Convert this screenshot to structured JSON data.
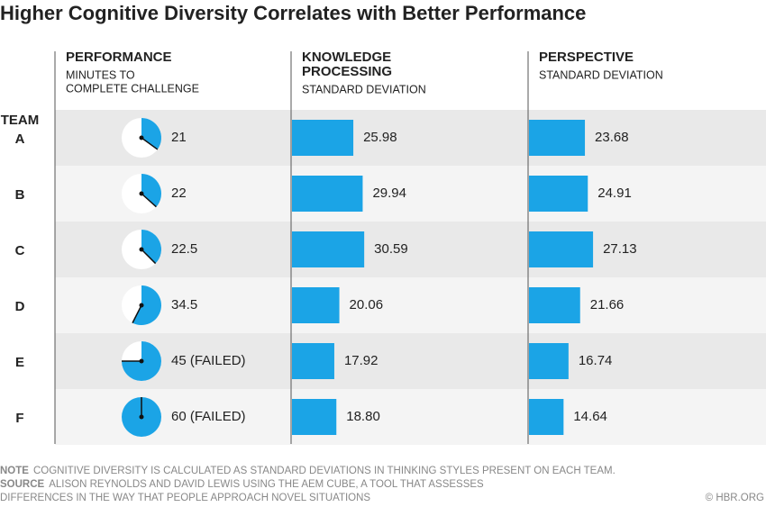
{
  "chart_data": {
    "type": "table-chart",
    "title": "Higher Cognitive Diversity Correlates with Better Performance",
    "row_header": "TEAM",
    "teams": [
      "A",
      "B",
      "C",
      "D",
      "E",
      "F"
    ],
    "columns": [
      {
        "type": "clock",
        "title_lines": [
          "PERFORMANCE"
        ],
        "subtitle_lines": [
          "MINUTES TO",
          "COMPLETE CHALLENGE"
        ],
        "values": [
          21,
          22,
          22.5,
          34.5,
          45,
          60
        ],
        "value_labels": [
          "21",
          "22",
          "22.5",
          "34.5",
          "45 (FAILED)",
          "60 (FAILED)"
        ],
        "color": "#1ba4e6"
      },
      {
        "type": "bar",
        "title_lines": [
          "KNOWLEDGE",
          "PROCESSING"
        ],
        "subtitle_lines": [
          "STANDARD DEVIATION"
        ],
        "values": [
          25.98,
          29.94,
          30.59,
          20.06,
          17.92,
          18.8
        ],
        "value_labels": [
          "25.98",
          "29.94",
          "30.59",
          "20.06",
          "17.92",
          "18.80"
        ],
        "color": "#1ba4e6"
      },
      {
        "type": "bar",
        "title_lines": [
          "PERSPECTIVE"
        ],
        "subtitle_lines": [
          "STANDARD DEVIATION"
        ],
        "values": [
          23.68,
          24.91,
          27.13,
          21.66,
          16.74,
          14.64
        ],
        "value_labels": [
          "23.68",
          "24.91",
          "27.13",
          "21.66",
          "16.74",
          "14.64"
        ],
        "color": "#1ba4e6"
      }
    ],
    "note_label": "NOTE",
    "note": "COGNITIVE DIVERSITY IS CALCULATED AS STANDARD DEVIATIONS IN THINKING STYLES PRESENT ON EACH TEAM.",
    "source_label": "SOURCE",
    "source_lines": [
      "ALISON REYNOLDS AND DAVID LEWIS USING THE AEM CUBE, A TOOL THAT ASSESSES",
      "DIFFERENCES IN THE WAY THAT PEOPLE APPROACH NOVEL SITUATIONS"
    ],
    "credit": "© HBR.ORG"
  }
}
